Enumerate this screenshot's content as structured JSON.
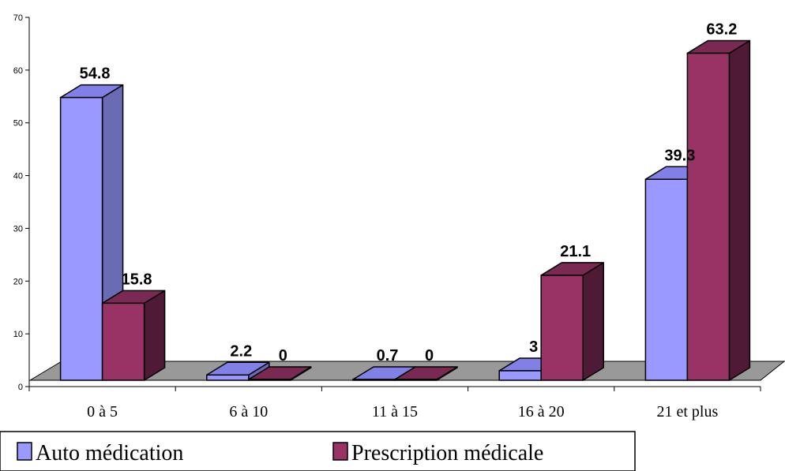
{
  "chart_data": {
    "type": "bar",
    "title": "",
    "xlabel": "",
    "ylabel": "",
    "ylim": [
      0,
      70
    ],
    "yticks": [
      0,
      10,
      20,
      30,
      40,
      50,
      60,
      70
    ],
    "categories": [
      "0 à 5",
      "6 à 10",
      "11 à 15",
      "16 à 20",
      "21 et plus"
    ],
    "series": [
      {
        "name": "Auto médication",
        "values": [
          54.8,
          2.2,
          0.7,
          3,
          39.3
        ],
        "labels": [
          "54.8",
          "2.2",
          "0.7",
          "3",
          "39.3"
        ],
        "color": "#9999FF",
        "side_color": "#6B6BB3",
        "top_color": "#8080E6"
      },
      {
        "name": "Prescription médicale",
        "values": [
          15.8,
          0,
          0,
          21.1,
          63.2
        ],
        "labels": [
          "15.8",
          "0",
          "0",
          "21.1",
          "63.2"
        ],
        "color": "#993366",
        "side_color": "#4F1A35",
        "top_color": "#7A2952"
      }
    ],
    "floor_color": "#999999",
    "legend_position": "bottom-left",
    "grid": false
  }
}
